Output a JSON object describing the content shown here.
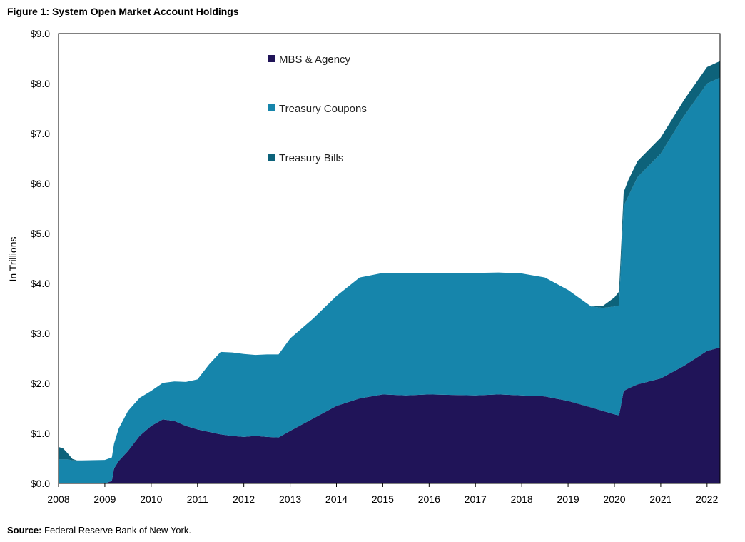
{
  "figure": {
    "title": "Figure 1: System Open Market Account Holdings",
    "source_label": "Source:",
    "source_text": " Federal Reserve Bank of New York."
  },
  "chart_data": {
    "type": "area",
    "stacked": true,
    "title": "Figure 1: System Open Market Account Holdings",
    "xlabel": "",
    "ylabel": "In Trillions",
    "xlim": [
      2008.0,
      2022.28
    ],
    "ylim": [
      0,
      9
    ],
    "x_ticks": [
      "2008",
      "2009",
      "2010",
      "2011",
      "2012",
      "2013",
      "2014",
      "2015",
      "2016",
      "2017",
      "2018",
      "2019",
      "2020",
      "2021",
      "2022"
    ],
    "y_ticks": [
      "$0.0",
      "$1.0",
      "$2.0",
      "$3.0",
      "$4.0",
      "$5.0",
      "$6.0",
      "$7.0",
      "$8.0",
      "$9.0"
    ],
    "grid": false,
    "legend_position": "top-center",
    "x": [
      2008.0,
      2008.1,
      2008.2,
      2008.3,
      2008.4,
      2008.5,
      2009.0,
      2009.15,
      2009.2,
      2009.3,
      2009.5,
      2009.75,
      2010.0,
      2010.25,
      2010.5,
      2010.75,
      2011.0,
      2011.25,
      2011.5,
      2011.75,
      2012.0,
      2012.25,
      2012.5,
      2012.75,
      2013.0,
      2013.5,
      2014.0,
      2014.5,
      2015.0,
      2015.5,
      2016.0,
      2016.5,
      2017.0,
      2017.5,
      2018.0,
      2018.5,
      2019.0,
      2019.5,
      2019.75,
      2020.0,
      2020.1,
      2020.2,
      2020.3,
      2020.5,
      2021.0,
      2021.5,
      2022.0,
      2022.28
    ],
    "series": [
      {
        "name": "MBS & Agency",
        "color": "#201458",
        "values": [
          0.0,
          0.0,
          0.0,
          0.0,
          0.0,
          0.0,
          0.0,
          0.05,
          0.3,
          0.45,
          0.65,
          0.95,
          1.15,
          1.28,
          1.25,
          1.15,
          1.08,
          1.03,
          0.98,
          0.95,
          0.93,
          0.95,
          0.93,
          0.92,
          1.05,
          1.3,
          1.55,
          1.7,
          1.78,
          1.76,
          1.78,
          1.77,
          1.76,
          1.78,
          1.76,
          1.74,
          1.65,
          1.52,
          1.45,
          1.38,
          1.36,
          1.85,
          1.9,
          1.98,
          2.1,
          2.35,
          2.65,
          2.72
        ]
      },
      {
        "name": "Treasury Coupons",
        "color": "#1685ab",
        "values": [
          0.48,
          0.48,
          0.48,
          0.46,
          0.46,
          0.46,
          0.47,
          0.47,
          0.5,
          0.65,
          0.8,
          0.76,
          0.7,
          0.73,
          0.79,
          0.88,
          1.0,
          1.35,
          1.65,
          1.67,
          1.66,
          1.62,
          1.65,
          1.66,
          1.85,
          2.0,
          2.2,
          2.42,
          2.43,
          2.44,
          2.43,
          2.44,
          2.45,
          2.44,
          2.44,
          2.38,
          2.22,
          2.02,
          2.06,
          2.16,
          2.2,
          3.7,
          3.85,
          4.15,
          4.5,
          5.0,
          5.35,
          5.4
        ]
      },
      {
        "name": "Treasury Bills",
        "color": "#0d627a",
        "values": [
          0.25,
          0.22,
          0.12,
          0.03,
          0.0,
          0.0,
          0.0,
          0.0,
          0.0,
          0.0,
          0.0,
          0.0,
          0.0,
          0.0,
          0.0,
          0.0,
          0.0,
          0.0,
          0.0,
          0.0,
          0.0,
          0.0,
          0.0,
          0.0,
          0.0,
          0.0,
          0.0,
          0.0,
          0.0,
          0.0,
          0.0,
          0.0,
          0.0,
          0.0,
          0.0,
          0.0,
          0.0,
          0.0,
          0.04,
          0.18,
          0.28,
          0.28,
          0.32,
          0.32,
          0.32,
          0.32,
          0.33,
          0.33
        ]
      }
    ]
  }
}
